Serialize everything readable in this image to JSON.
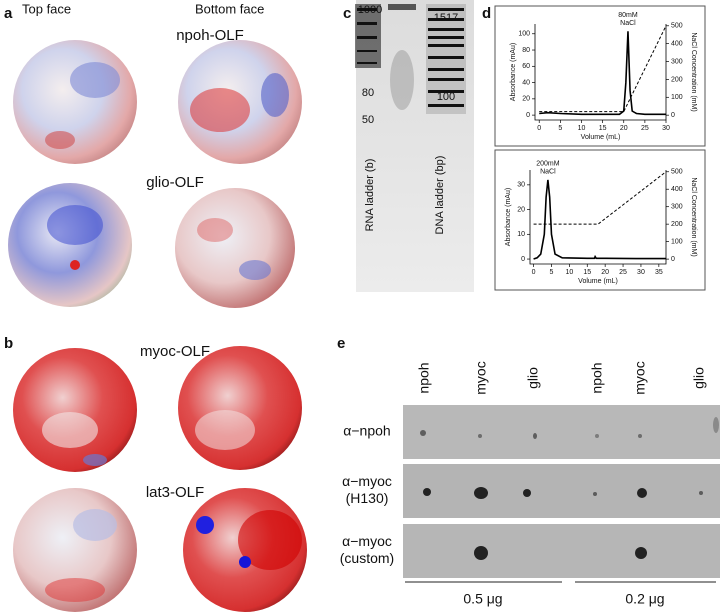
{
  "panels": {
    "a": {
      "letter": "a",
      "top_face": "Top face",
      "bottom_face": "Bottom face",
      "proteins": [
        "npoh-OLF",
        "glio-OLF"
      ]
    },
    "b": {
      "letter": "b",
      "proteins": [
        "myoc-OLF",
        "lat3-OLF"
      ]
    },
    "c": {
      "letter": "c",
      "rna_marks": [
        "1000",
        "80",
        "50"
      ],
      "rna_label": "RNA ladder (b)",
      "dna_marks": [
        "1517",
        "100"
      ],
      "dna_label": "DNA ladder (bp)"
    },
    "d": {
      "letter": "d"
    },
    "e": {
      "letter": "e",
      "columns": [
        "npoh",
        "myoc",
        "glio",
        "npoh",
        "myoc",
        "glio"
      ],
      "rows": [
        [
          "α−npoh"
        ],
        [
          "α−myoc",
          "(H130)"
        ],
        [
          "α−myoc",
          "(custom)"
        ]
      ],
      "amounts": [
        "0.5 μg",
        "0.2 μg"
      ]
    }
  },
  "chart_data": [
    {
      "type": "line",
      "annotation": [
        "80mM",
        "NaCl"
      ],
      "xlabel": "Volume (mL)",
      "ylabel": "Absorbance (mAu)",
      "y2label": "NaCl Concentration (mM)",
      "xlim": [
        -1,
        30
      ],
      "xticks": [
        0,
        5,
        10,
        15,
        20,
        25,
        30
      ],
      "ylim": [
        -6,
        112
      ],
      "yticks": [
        0,
        20,
        40,
        60,
        80,
        100
      ],
      "y2lim": [
        -27,
        510
      ],
      "y2ticks": [
        0,
        100,
        200,
        300,
        400,
        500
      ],
      "series": [
        {
          "color": "#000000",
          "style": "solid",
          "x": [
            0,
            2,
            5,
            10,
            15,
            19,
            20,
            20.5,
            21,
            21.5,
            22,
            23,
            25,
            30
          ],
          "values": [
            2,
            3,
            2,
            1,
            1,
            1,
            5,
            40,
            103,
            30,
            5,
            2,
            1,
            1
          ]
        },
        {
          "color": "#000000",
          "style": "dashed",
          "axis": "y2",
          "x": [
            0,
            20,
            30
          ],
          "values": [
            20,
            20,
            500
          ]
        }
      ]
    },
    {
      "type": "line",
      "annotation": [
        "200mM",
        "NaCl"
      ],
      "xlabel": "Volume (mL)",
      "ylabel": "Absorbance (mAu)",
      "y2label": "NaCl Concentration (mM)",
      "xlim": [
        -1,
        37
      ],
      "xticks": [
        0,
        5,
        10,
        15,
        20,
        25,
        30,
        35
      ],
      "ylim": [
        -2,
        36
      ],
      "yticks": [
        0,
        10,
        20,
        30
      ],
      "y2lim": [
        -28,
        510
      ],
      "y2ticks": [
        0,
        100,
        200,
        300,
        400,
        500
      ],
      "series": [
        {
          "color": "#000000",
          "style": "solid",
          "x": [
            0,
            1,
            2,
            3,
            3.5,
            4,
            4.5,
            5,
            6,
            8,
            15,
            17,
            17.2,
            17.5,
            20,
            30,
            37
          ],
          "values": [
            0,
            0.5,
            2,
            10,
            25,
            32,
            25,
            10,
            2,
            0.5,
            0.3,
            0.3,
            1,
            0.3,
            0.3,
            0.2,
            0.2
          ]
        },
        {
          "color": "#000000",
          "style": "dashed",
          "axis": "y2",
          "x": [
            0,
            18,
            37
          ],
          "values": [
            200,
            200,
            500
          ]
        }
      ]
    }
  ]
}
